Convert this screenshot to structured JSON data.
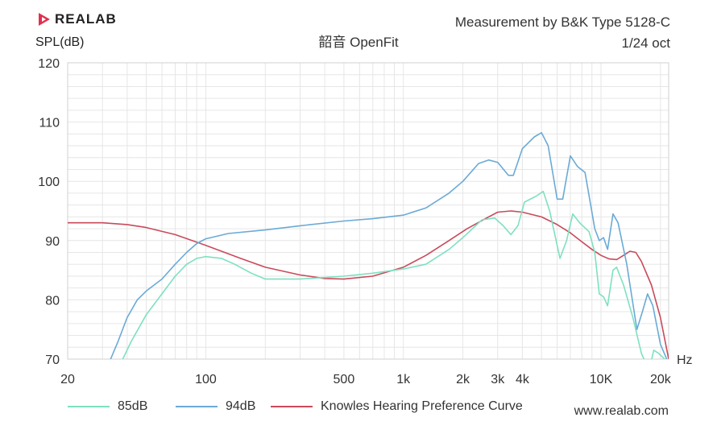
{
  "header": {
    "logo_text": "REALAB",
    "measurement": "Measurement by B&K Type 5128-C",
    "smoothing": "1/24 oct",
    "website": "www.realab.com"
  },
  "colors": {
    "grid": "#e6e6e6",
    "axis": "#d0d0d0",
    "logo": "#e0304e"
  },
  "chart_data": {
    "type": "line",
    "title": "韶音 OpenFit",
    "ylabel": "SPL(dB)",
    "xlabel": "Hz",
    "x_scale": "log",
    "xlim": [
      20,
      22000
    ],
    "ylim": [
      70,
      120
    ],
    "y_ticks": [
      70,
      80,
      90,
      100,
      110,
      120
    ],
    "x_tick_labels": [
      {
        "value": 20,
        "label": "20"
      },
      {
        "value": 100,
        "label": "100"
      },
      {
        "value": 500,
        "label": "500"
      },
      {
        "value": 1000,
        "label": "1k"
      },
      {
        "value": 2000,
        "label": "2k"
      },
      {
        "value": 3000,
        "label": "3k"
      },
      {
        "value": 4000,
        "label": "4k"
      },
      {
        "value": 10000,
        "label": "10K"
      },
      {
        "value": 20000,
        "label": "20k"
      }
    ],
    "legend_position": "bottom",
    "series": [
      {
        "name": "85dB",
        "color": "#7ee0c0",
        "points": [
          [
            38,
            70
          ],
          [
            42,
            73
          ],
          [
            50,
            77.5
          ],
          [
            60,
            81
          ],
          [
            70,
            84
          ],
          [
            80,
            86
          ],
          [
            90,
            87
          ],
          [
            100,
            87.3
          ],
          [
            120,
            87
          ],
          [
            140,
            86
          ],
          [
            170,
            84.5
          ],
          [
            200,
            83.5
          ],
          [
            300,
            83.5
          ],
          [
            500,
            84
          ],
          [
            700,
            84.5
          ],
          [
            1000,
            85.2
          ],
          [
            1300,
            86
          ],
          [
            1700,
            88.5
          ],
          [
            2000,
            90.5
          ],
          [
            2500,
            93.5
          ],
          [
            2900,
            93.8
          ],
          [
            3200,
            92.5
          ],
          [
            3500,
            91
          ],
          [
            3800,
            92.5
          ],
          [
            4100,
            96.5
          ],
          [
            4700,
            97.5
          ],
          [
            5100,
            98.3
          ],
          [
            5500,
            95
          ],
          [
            6200,
            87
          ],
          [
            6700,
            90
          ],
          [
            7200,
            94.5
          ],
          [
            7800,
            93
          ],
          [
            8700,
            91.5
          ],
          [
            9300,
            88
          ],
          [
            9800,
            81
          ],
          [
            10300,
            80.5
          ],
          [
            10800,
            79
          ],
          [
            11500,
            85
          ],
          [
            12000,
            85.5
          ],
          [
            13000,
            82.5
          ],
          [
            14500,
            77
          ],
          [
            16000,
            71
          ],
          [
            17500,
            68
          ],
          [
            18500,
            71.5
          ],
          [
            19500,
            71
          ],
          [
            21000,
            70
          ]
        ]
      },
      {
        "name": "94dB",
        "color": "#6aaad6",
        "points": [
          [
            33,
            70
          ],
          [
            36,
            73
          ],
          [
            40,
            77
          ],
          [
            45,
            80
          ],
          [
            50,
            81.5
          ],
          [
            60,
            83.5
          ],
          [
            70,
            86
          ],
          [
            80,
            88
          ],
          [
            90,
            89.5
          ],
          [
            100,
            90.3
          ],
          [
            130,
            91.2
          ],
          [
            200,
            91.8
          ],
          [
            300,
            92.5
          ],
          [
            500,
            93.3
          ],
          [
            700,
            93.7
          ],
          [
            1000,
            94.3
          ],
          [
            1300,
            95.5
          ],
          [
            1700,
            98
          ],
          [
            2000,
            100
          ],
          [
            2400,
            103
          ],
          [
            2700,
            103.6
          ],
          [
            3000,
            103.2
          ],
          [
            3400,
            101
          ],
          [
            3600,
            101
          ],
          [
            4000,
            105.5
          ],
          [
            4600,
            107.5
          ],
          [
            5000,
            108.2
          ],
          [
            5400,
            106
          ],
          [
            6000,
            97
          ],
          [
            6400,
            97
          ],
          [
            7000,
            104.3
          ],
          [
            7600,
            102.5
          ],
          [
            8300,
            101.5
          ],
          [
            9300,
            92
          ],
          [
            9800,
            90
          ],
          [
            10300,
            90.5
          ],
          [
            10800,
            88.5
          ],
          [
            11500,
            94.5
          ],
          [
            12200,
            93
          ],
          [
            13500,
            86
          ],
          [
            15200,
            75
          ],
          [
            16200,
            78
          ],
          [
            17200,
            81
          ],
          [
            18300,
            79
          ],
          [
            20000,
            72.5
          ],
          [
            21500,
            70
          ]
        ]
      },
      {
        "name": "Knowles Hearing Preference Curve",
        "color": "#c94a5a",
        "points": [
          [
            20,
            93
          ],
          [
            30,
            93
          ],
          [
            40,
            92.7
          ],
          [
            50,
            92.2
          ],
          [
            70,
            91
          ],
          [
            100,
            89.2
          ],
          [
            150,
            87
          ],
          [
            200,
            85.5
          ],
          [
            300,
            84.2
          ],
          [
            400,
            83.6
          ],
          [
            500,
            83.5
          ],
          [
            700,
            84
          ],
          [
            1000,
            85.5
          ],
          [
            1300,
            87.5
          ],
          [
            1700,
            90
          ],
          [
            2100,
            92
          ],
          [
            2600,
            93.7
          ],
          [
            3000,
            94.8
          ],
          [
            3500,
            95
          ],
          [
            4000,
            94.8
          ],
          [
            5000,
            94
          ],
          [
            6000,
            92.7
          ],
          [
            7000,
            91.3
          ],
          [
            8000,
            89.8
          ],
          [
            9000,
            88.5
          ],
          [
            10000,
            87.5
          ],
          [
            11000,
            86.9
          ],
          [
            12000,
            86.8
          ],
          [
            13000,
            87.5
          ],
          [
            14000,
            88.2
          ],
          [
            15000,
            88
          ],
          [
            16000,
            86.5
          ],
          [
            18000,
            82.5
          ],
          [
            20000,
            77
          ],
          [
            22000,
            70
          ]
        ]
      }
    ]
  }
}
